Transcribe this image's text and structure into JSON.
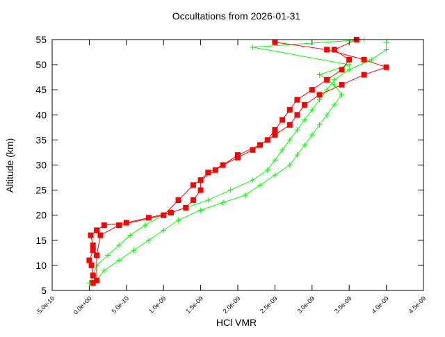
{
  "chart_data": {
    "type": "line",
    "title": "Occultations from 2026-01-31",
    "xlabel": "HCl VMR",
    "ylabel": "Altitude (km)",
    "xlim": [
      -5e-10,
      4.5e-09
    ],
    "ylim": [
      5,
      55
    ],
    "xticks": [
      {
        "value": -5e-10,
        "label": "-5.0e-10"
      },
      {
        "value": 0,
        "label": "0.0e+00"
      },
      {
        "value": 5e-10,
        "label": "5.0e-10"
      },
      {
        "value": 1e-09,
        "label": "1.0e-09"
      },
      {
        "value": 1.5e-09,
        "label": "1.5e-09"
      },
      {
        "value": 2e-09,
        "label": "2.0e-09"
      },
      {
        "value": 2.5e-09,
        "label": "2.5e-09"
      },
      {
        "value": 3e-09,
        "label": "3.0e-09"
      },
      {
        "value": 3.5e-09,
        "label": "3.5e-09"
      },
      {
        "value": 4e-09,
        "label": "4.0e-09"
      },
      {
        "value": 4.5e-09,
        "label": "4.5e-09"
      }
    ],
    "yticks": [
      5,
      10,
      15,
      20,
      25,
      30,
      35,
      40,
      45,
      50,
      55
    ],
    "series": [
      {
        "color": "#00ff00",
        "marker": "plus",
        "x": [
          0,
          5e-11,
          1e-10,
          2.5e-10,
          4e-10,
          5.5e-10,
          7.5e-10,
          1e-09,
          1.3e-09,
          1.6e-09,
          1.9e-09,
          2.2e-09,
          2.4e-09,
          2.5e-09,
          2.6e-09,
          2.7e-09,
          2.8e-09,
          2.9e-09,
          3e-09,
          3.1e-09,
          3.2e-09,
          3.3e-09,
          3.5e-09,
          3.8e-09,
          4e-09,
          4e-09
        ],
        "values": [
          6.5,
          8,
          10,
          12,
          14,
          16,
          18,
          20,
          21.5,
          23,
          25,
          27,
          29,
          31,
          33,
          35,
          37,
          39,
          41,
          43,
          45,
          47,
          49,
          51,
          53,
          54.5
        ]
      },
      {
        "color": "#00ff00",
        "marker": "plus",
        "x": [
          1e-10,
          2e-10,
          4e-10,
          6e-10,
          8e-10,
          1e-09,
          1.2e-09,
          1.5e-09,
          1.8e-09,
          2.1e-09,
          2.3e-09,
          2.5e-09,
          2.7e-09,
          2.8e-09,
          2.9e-09,
          3e-09,
          3.1e-09,
          3.2e-09,
          3.3e-09,
          3.4e-09,
          3.3e-09,
          3.1e-09,
          3.5e-09,
          2.2e-09,
          3.7e-09
        ],
        "values": [
          7,
          9,
          11,
          13,
          15,
          17,
          19,
          21,
          22.5,
          24,
          26,
          28,
          30,
          32,
          34,
          36,
          38,
          40,
          42,
          44,
          46,
          48,
          50,
          53.5,
          55
        ]
      },
      {
        "color": "#ff0000",
        "marker": "square",
        "x": [
          5e-11,
          5e-11,
          3e-11,
          0,
          5e-11,
          5e-11,
          2e-11,
          1e-10,
          2e-10,
          5e-10,
          8e-10,
          1.1e-09,
          1.3e-09,
          1.4e-09,
          1.5e-09,
          1.5e-09,
          1.6e-09,
          1.8e-09,
          2e-09,
          2.2e-09,
          2.4e-09,
          2.5e-09,
          2.6e-09,
          2.7e-09,
          2.8e-09,
          3e-09,
          3.2e-09,
          3.4e-09,
          3.5e-09,
          3.3e-09,
          3.6e-09
        ],
        "values": [
          6.5,
          8,
          10,
          11,
          13,
          14,
          16,
          17,
          18,
          18.5,
          19.5,
          20.5,
          21.5,
          23,
          25,
          27,
          28.5,
          30,
          31.5,
          33,
          35,
          37,
          39,
          41,
          43,
          45,
          47,
          49,
          51,
          53,
          55
        ]
      },
      {
        "color": "#ff0000",
        "marker": "square",
        "x": [
          1e-10,
          1e-10,
          1.5e-10,
          4e-10,
          1e-09,
          1.2e-09,
          1.4e-09,
          1.7e-09,
          2e-09,
          2.3e-09,
          2.5e-09,
          2.7e-09,
          2.8e-09,
          2.9e-09,
          3.1e-09,
          3.4e-09,
          3.7e-09,
          4e-09,
          3.7e-09,
          3.2e-09,
          2.5e-09
        ],
        "values": [
          7,
          12,
          16,
          18,
          20,
          23,
          26,
          29,
          32,
          34,
          36,
          38,
          40,
          42,
          44,
          46,
          48,
          49.5,
          51,
          53,
          54.5
        ]
      }
    ]
  }
}
